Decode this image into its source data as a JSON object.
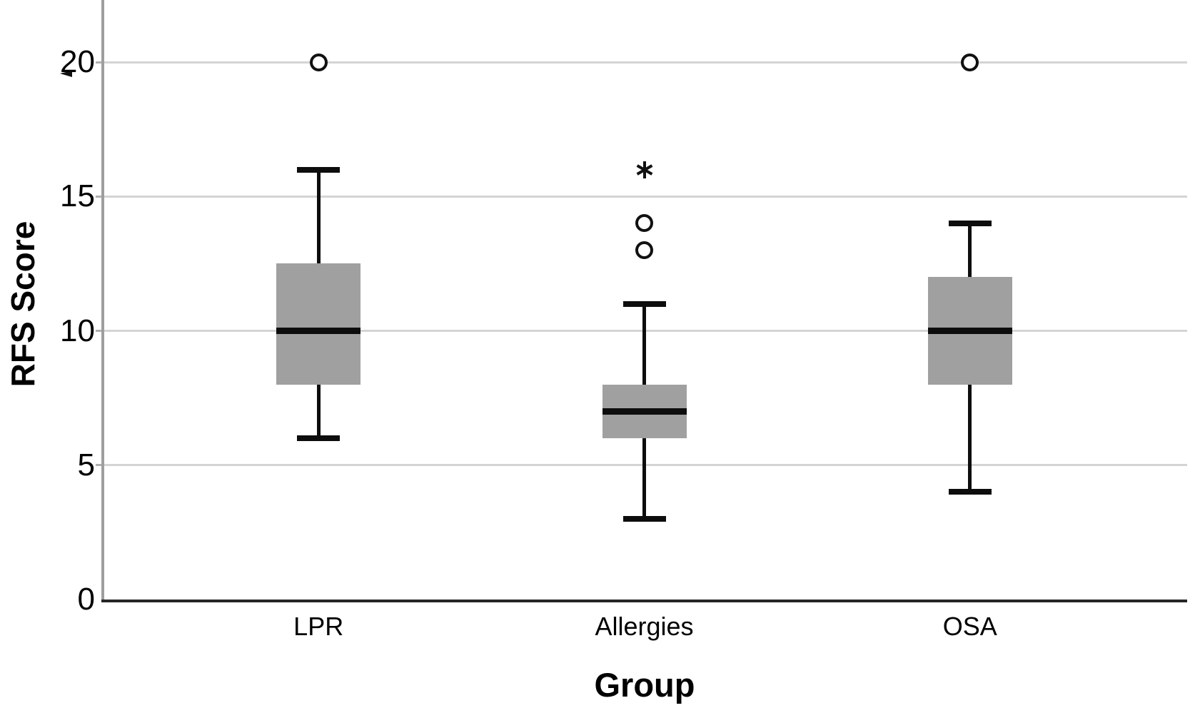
{
  "chart_data": {
    "type": "boxplot",
    "xlabel": "Group",
    "ylabel": "RFS Score",
    "ylim": [
      0,
      22.3
    ],
    "yticks": [
      0,
      5,
      10,
      15,
      20
    ],
    "grid": "horizontal-light-gray",
    "legend": "none",
    "categories": [
      "LPR",
      "Allergies",
      "OSA"
    ],
    "groups": [
      {
        "label": "LPR",
        "whisker_low": 6,
        "q1": 8,
        "median": 10,
        "q3": 12.5,
        "whisker_high": 16,
        "outliers": [
          {
            "value": 20,
            "marker": "circle"
          }
        ]
      },
      {
        "label": "Allergies",
        "whisker_low": 3,
        "q1": 6,
        "median": 7,
        "q3": 8,
        "whisker_high": 11,
        "outliers": [
          {
            "value": 13,
            "marker": "circle"
          },
          {
            "value": 14,
            "marker": "circle"
          },
          {
            "value": 16,
            "marker": "star"
          }
        ]
      },
      {
        "label": "OSA",
        "whisker_low": 4,
        "q1": 8,
        "median": 10,
        "q3": 12,
        "whisker_high": 14,
        "outliers": [
          {
            "value": 20,
            "marker": "circle"
          }
        ]
      }
    ],
    "colors": {
      "box_fill": "#a0a0a0",
      "median": "#0d0d0d",
      "whisker": "#0d0d0d",
      "outlier": "#111111",
      "gridline": "#d4d4d4",
      "y_axis_line": "#9e9e9e",
      "x_axis_line": "#262626",
      "text": "#000000",
      "background": "#ffffff"
    }
  }
}
